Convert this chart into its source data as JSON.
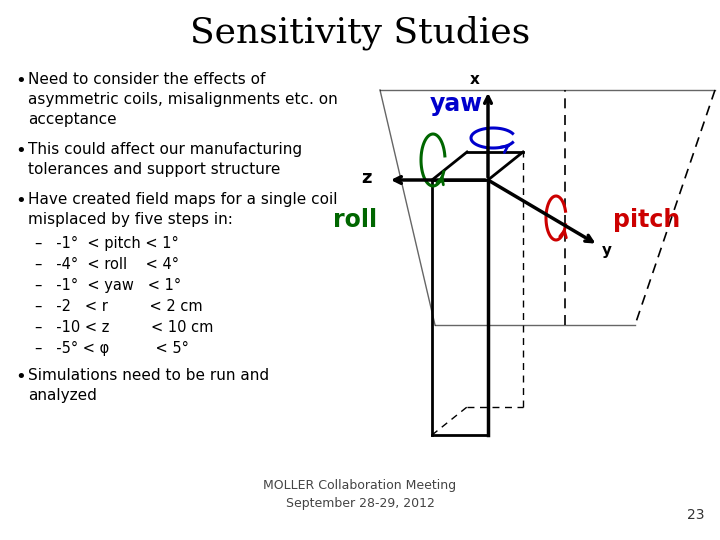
{
  "title": "Sensitivity Studies",
  "title_fontsize": 26,
  "title_font": "serif",
  "background_color": "#ffffff",
  "bullet_points": [
    "Need to consider the effects of\nasymmetric coils, misalignments etc. on\nacceptance",
    "This could affect our manufacturing\ntolerances and support structure",
    "Have created field maps for a single coil\nmisplaced by five steps in:"
  ],
  "sub_bullets": [
    "–   -1°  < pitch < 1°",
    "–   -4°  < roll    < 4°",
    "–   -1°  < yaw   < 1°",
    "–   -2   < r         < 2 cm",
    "–   -10 < z         < 10 cm",
    "–   -5° < φ          < 5°"
  ],
  "last_bullet": "Simulations need to be run and\nanalyzed",
  "footer_line1": "MOLLER Collaboration Meeting",
  "footer_line2": "September 28-29, 2012",
  "page_number": "23",
  "text_fontsize": 11,
  "sub_fontsize": 10.5,
  "footer_fontsize": 9,
  "bullet_color": "#000000",
  "text_color": "#000000",
  "yaw_color": "#0000cc",
  "pitch_color": "#cc0000",
  "roll_color": "#006600"
}
